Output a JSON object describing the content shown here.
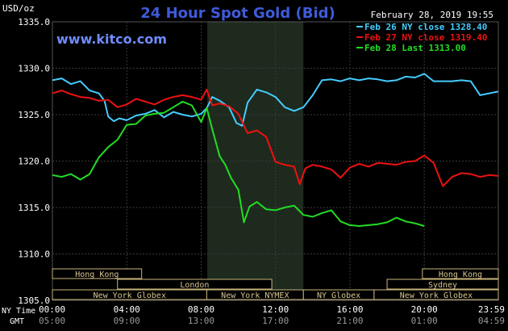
{
  "chart_data": {
    "type": "line",
    "title": "24 Hour Spot Gold (Bid)",
    "ylabel": "USD/oz",
    "site": "www.kitco.com",
    "timestamp": "February 28, 2019 19:55",
    "ylim": [
      1305,
      1335
    ],
    "y_ticks": [
      "1335.0",
      "1330.0",
      "1325.0",
      "1320.0",
      "1315.0",
      "1310.0",
      "1305.0"
    ],
    "y_tick_values": [
      1335,
      1330,
      1325,
      1320,
      1315,
      1310,
      1305
    ],
    "x_label_ny": "NY Time",
    "x_label_gmt": "GMT",
    "x_ticks_ny": [
      "00:00",
      "04:00",
      "08:00",
      "12:00",
      "16:00",
      "20:00",
      "23:59"
    ],
    "x_ticks_gmt": [
      "05:00",
      "09:00",
      "13:00",
      "17:00",
      "21:00",
      "01:00",
      "04:59"
    ],
    "x_tick_hours": [
      0,
      4,
      8,
      12,
      16,
      20,
      23.983
    ],
    "xlim_hours": [
      0,
      23.983
    ],
    "shaded_region_hours": [
      8.33,
      13.5
    ],
    "legend": [
      {
        "label": "Feb 26 NY close 1328.40",
        "color": "#44ccff"
      },
      {
        "label": "Feb 27 NY close 1319.40",
        "color": "#ee1111"
      },
      {
        "label": "Feb 28 Last 1313.00",
        "color": "#22dd22"
      }
    ],
    "sessions": [
      {
        "name": "Hong Kong",
        "start": 0,
        "end": 4.8,
        "row": 0
      },
      {
        "name": "Hong Kong",
        "start": 19.9,
        "end": 24,
        "row": 0
      },
      {
        "name": "London",
        "start": 3.5,
        "end": 11.8,
        "row": 1
      },
      {
        "name": "Sydney",
        "start": 18.0,
        "end": 24,
        "row": 1
      },
      {
        "name": "New York Globex",
        "start": 0,
        "end": 8.3,
        "row": 2
      },
      {
        "name": "New York NYMEX",
        "start": 8.3,
        "end": 13.5,
        "row": 2
      },
      {
        "name": "NY Globex",
        "start": 13.5,
        "end": 17.3,
        "row": 2
      },
      {
        "name": "New York Globex",
        "start": 17.3,
        "end": 24,
        "row": 2
      }
    ],
    "series": [
      {
        "name": "Feb 26 NY close 1328.40",
        "color": "#44ccff",
        "x": [
          0,
          0.5,
          1,
          1.5,
          2,
          2.5,
          2.8,
          3,
          3.3,
          3.6,
          4,
          4.5,
          5,
          5.5,
          6,
          6.5,
          7,
          7.5,
          8,
          8.3,
          8.6,
          9,
          9.5,
          9.9,
          10.2,
          10.5,
          11,
          11.5,
          12,
          12.5,
          13,
          13.5,
          14,
          14.5,
          15,
          15.5,
          16,
          16.5,
          17,
          17.5,
          18,
          18.5,
          19,
          19.5,
          20,
          20.5,
          21,
          21.5,
          22,
          22.5,
          23,
          23.5,
          23.98
        ],
        "y": [
          1328.7,
          1328.9,
          1328.3,
          1328.6,
          1327.6,
          1327.3,
          1326.5,
          1324.8,
          1324.3,
          1324.6,
          1324.4,
          1324.9,
          1325.1,
          1325.5,
          1324.7,
          1325.3,
          1325.0,
          1324.8,
          1325.1,
          1325.7,
          1326.9,
          1326.5,
          1325.8,
          1324.1,
          1323.8,
          1326.3,
          1327.7,
          1327.4,
          1326.9,
          1325.8,
          1325.4,
          1325.8,
          1327.1,
          1328.7,
          1328.8,
          1328.6,
          1328.9,
          1328.7,
          1328.9,
          1328.8,
          1328.6,
          1328.7,
          1329.1,
          1329.0,
          1329.4,
          1328.6,
          1328.6,
          1328.6,
          1328.7,
          1328.6,
          1327.1,
          1327.3,
          1327.5
        ]
      },
      {
        "name": "Feb 27 NY close 1319.40",
        "color": "#ee1111",
        "x": [
          0,
          0.5,
          1,
          1.5,
          2,
          2.5,
          3,
          3.5,
          4,
          4.5,
          5,
          5.5,
          6,
          6.5,
          7,
          7.5,
          8,
          8.3,
          8.6,
          9,
          9.5,
          10,
          10.5,
          11,
          11.5,
          12,
          12.5,
          13,
          13.3,
          13.6,
          14,
          14.5,
          15,
          15.5,
          16,
          16.5,
          17,
          17.5,
          18,
          18.5,
          19,
          19.5,
          20,
          20.5,
          21,
          21.5,
          22,
          22.5,
          23,
          23.5,
          23.98
        ],
        "y": [
          1327.3,
          1327.6,
          1327.2,
          1326.9,
          1326.8,
          1326.5,
          1326.6,
          1325.8,
          1326.1,
          1326.7,
          1326.4,
          1326.1,
          1326.6,
          1326.9,
          1327.1,
          1326.9,
          1326.6,
          1327.7,
          1326.0,
          1326.2,
          1325.9,
          1325.1,
          1323.0,
          1323.3,
          1322.6,
          1319.9,
          1319.6,
          1319.4,
          1317.5,
          1319.2,
          1319.6,
          1319.4,
          1319.1,
          1318.2,
          1319.3,
          1319.7,
          1319.4,
          1319.8,
          1319.7,
          1319.6,
          1319.9,
          1320.0,
          1320.6,
          1319.8,
          1317.3,
          1318.3,
          1318.7,
          1318.6,
          1318.3,
          1318.5,
          1318.4
        ]
      },
      {
        "name": "Feb 28 Last 1313.00",
        "color": "#22dd22",
        "x": [
          0,
          0.5,
          1,
          1.5,
          2,
          2.5,
          3,
          3.5,
          4,
          4.5,
          5,
          5.5,
          6,
          6.5,
          7,
          7.5,
          8,
          8.3,
          8.6,
          9,
          9.3,
          9.6,
          10,
          10.3,
          10.6,
          11,
          11.5,
          12,
          12.5,
          13,
          13.5,
          14,
          14.5,
          15,
          15.5,
          16,
          16.5,
          17,
          17.5,
          18,
          18.5,
          19,
          19.5,
          20
        ],
        "y": [
          1318.5,
          1318.3,
          1318.6,
          1318.0,
          1318.6,
          1320.4,
          1321.5,
          1322.3,
          1323.9,
          1324.0,
          1324.9,
          1325.1,
          1325.2,
          1325.8,
          1326.4,
          1326.0,
          1324.2,
          1325.7,
          1323.4,
          1320.5,
          1319.6,
          1318.2,
          1316.9,
          1313.4,
          1315.1,
          1315.6,
          1314.8,
          1314.7,
          1315.0,
          1315.2,
          1314.2,
          1314.0,
          1314.4,
          1314.7,
          1313.5,
          1313.1,
          1313.0,
          1313.1,
          1313.2,
          1313.4,
          1313.9,
          1313.5,
          1313.3,
          1313.0
        ]
      }
    ]
  }
}
